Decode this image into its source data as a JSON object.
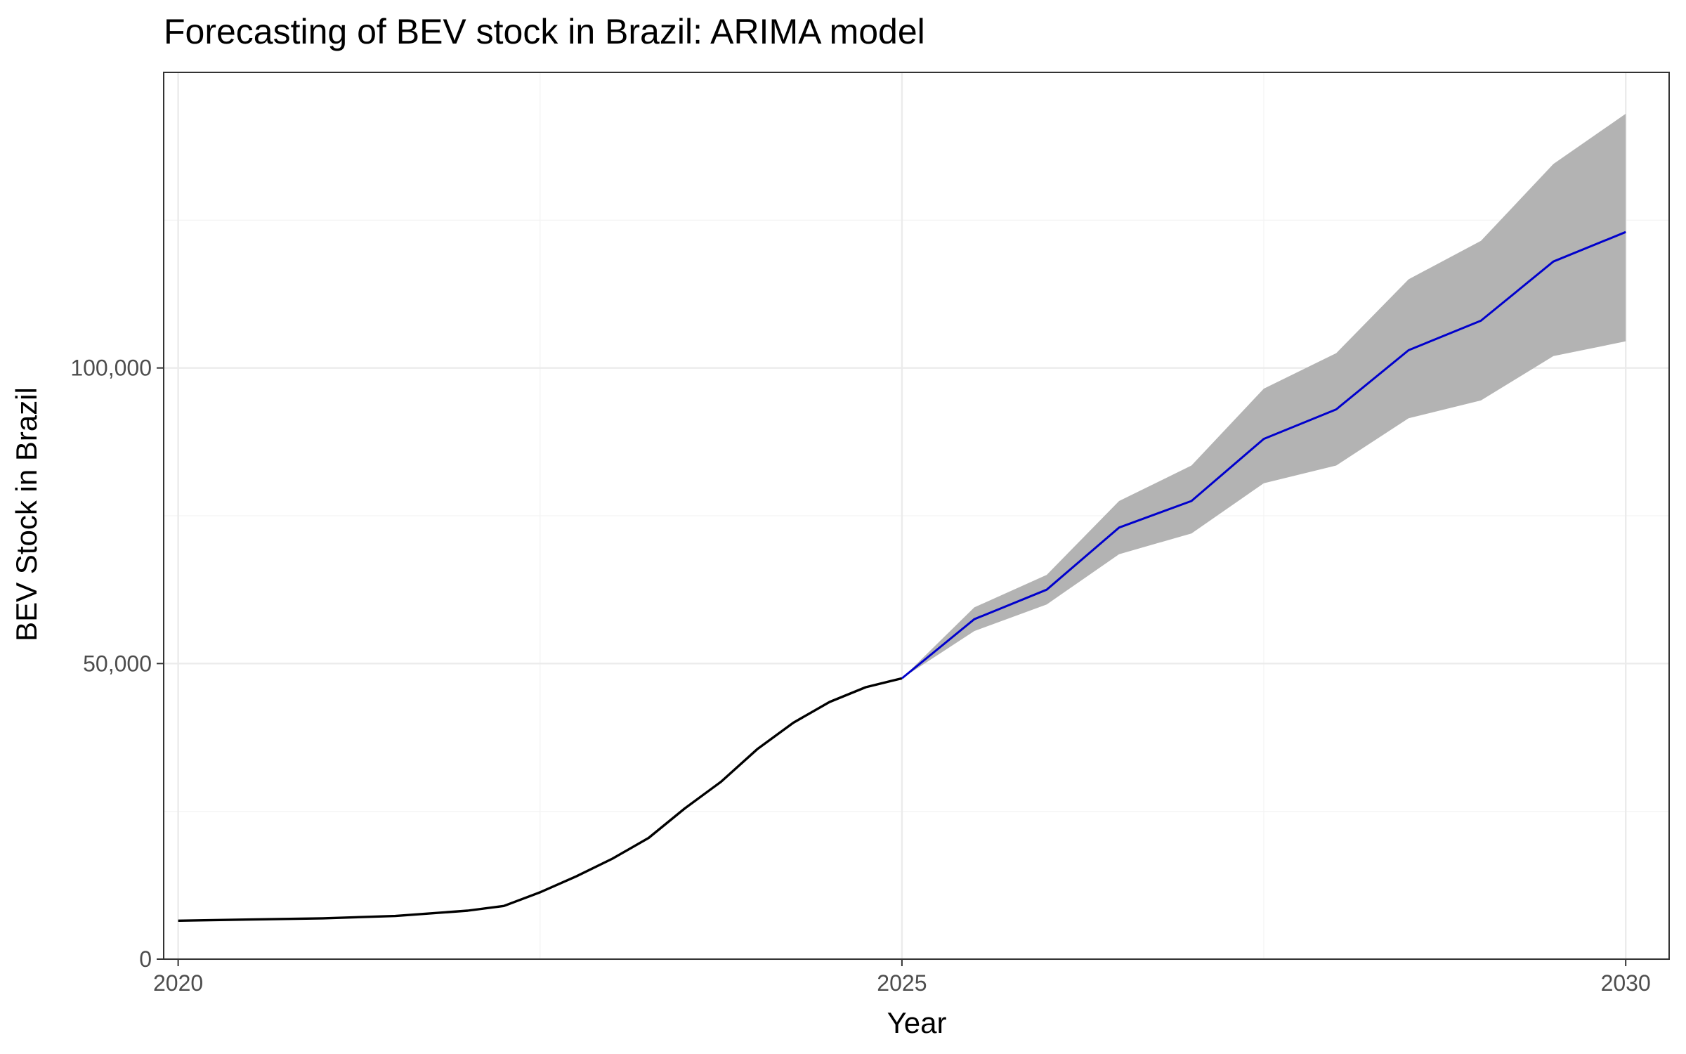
{
  "chart_data": {
    "type": "line",
    "title": "Forecasting of BEV stock in Brazil: ARIMA model",
    "xlabel": "Year",
    "ylabel": "BEV Stock in Brazil",
    "xlim": [
      2019.9,
      2030.3
    ],
    "ylim": [
      0,
      150000
    ],
    "x_ticks": [
      2020,
      2025,
      2030
    ],
    "x_tick_labels": [
      "2020",
      "2025",
      "2030"
    ],
    "y_ticks": [
      0,
      50000,
      100000
    ],
    "y_tick_labels": [
      "0",
      "50,000",
      "100,000"
    ],
    "y_minor_ticks": [
      25000,
      75000,
      125000
    ],
    "x_minor_ticks": [
      2022.5,
      2027.5
    ],
    "grid": true,
    "legend": "none",
    "colors": {
      "observed": "#000000",
      "forecast": "#0000cc",
      "interval": "#b3b3b3"
    },
    "series": [
      {
        "role": "observed",
        "x": [
          2020.0,
          2020.5,
          2021.0,
          2021.5,
          2022.0,
          2022.25,
          2022.5,
          2022.75,
          2023.0,
          2023.25,
          2023.5,
          2023.75,
          2024.0,
          2024.25,
          2024.5,
          2024.75,
          2025.0
        ],
        "y": [
          6500,
          6700,
          6900,
          7300,
          8200,
          9000,
          11300,
          14000,
          17000,
          20500,
          25500,
          30000,
          35500,
          40000,
          43500,
          46000,
          47500
        ]
      },
      {
        "role": "forecast",
        "x": [
          2025.0,
          2025.5,
          2026.0,
          2026.5,
          2027.0,
          2027.5,
          2028.0,
          2028.5,
          2029.0,
          2029.5,
          2030.0
        ],
        "y": [
          47500,
          57500,
          62500,
          73000,
          77500,
          88000,
          93000,
          103000,
          108000,
          118000,
          123000
        ],
        "lower": [
          47500,
          55500,
          60000,
          68500,
          72000,
          80500,
          83500,
          91500,
          94500,
          102000,
          104500
        ],
        "upper": [
          47500,
          59500,
          65000,
          77500,
          83500,
          96500,
          102500,
          115000,
          121500,
          134500,
          143000
        ]
      }
    ]
  }
}
